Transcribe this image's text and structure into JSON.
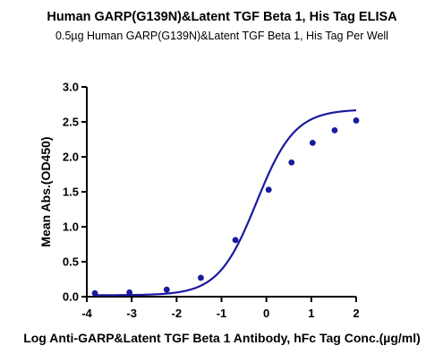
{
  "chart_data": {
    "type": "scatter",
    "title": "Human GARP(G139N)&Latent TGF Beta 1, His Tag ELISA",
    "subtitle": "0.5µg Human GARP(G139N)&Latent TGF Beta 1, His Tag Per Well",
    "xlabel": "Log Anti-GARP&Latent TGF Beta 1 Antibody, hFc Tag Conc.(µg/ml)",
    "ylabel": "Mean Abs.(OD450)",
    "xlim": [
      -4,
      2
    ],
    "ylim": [
      0,
      3.0
    ],
    "x_ticks": [
      "-4",
      "-3",
      "-2",
      "-1",
      "0",
      "1",
      "2"
    ],
    "y_ticks": [
      "0.0",
      "0.5",
      "1.0",
      "1.5",
      "2.0",
      "2.5",
      "3.0"
    ],
    "series": [
      {
        "x": [
          -3.82,
          -3.05,
          -2.22,
          -1.46,
          -0.69,
          0.05,
          0.56,
          1.03,
          1.52,
          2.0
        ],
        "y": [
          0.05,
          0.06,
          0.1,
          0.27,
          0.81,
          1.53,
          1.92,
          2.2,
          2.38,
          2.52
        ]
      }
    ],
    "fit_curve": {
      "model": "4PL",
      "bottom": 0.02,
      "top": 2.68,
      "ec50_log": -0.22,
      "hill": 1.02
    },
    "color": "#1a1aa0",
    "grid": false,
    "legend": "none"
  }
}
